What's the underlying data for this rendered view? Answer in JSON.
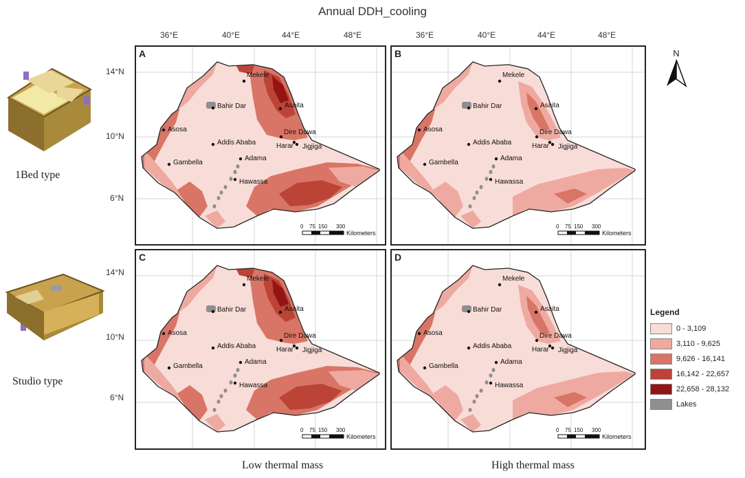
{
  "title": "Annual DDH_cooling",
  "lon_ticks": [
    "36°E",
    "40°E",
    "44°E",
    "48°E"
  ],
  "lat_ticks": [
    "14°N",
    "10°N",
    "6°N"
  ],
  "panels": [
    {
      "letter": "A",
      "intensity": 0
    },
    {
      "letter": "B",
      "intensity": 1
    },
    {
      "letter": "C",
      "intensity": 0
    },
    {
      "letter": "D",
      "intensity": 1
    }
  ],
  "cities": [
    "Mekele",
    "Bahir Dar",
    "Asaita",
    "Asosa",
    "Dire Dawa",
    "Addis Ababa",
    "Harar",
    "Jigjiga",
    "Gambella",
    "Adama",
    "Hawassa"
  ],
  "scale": {
    "ticks": [
      "0",
      "75",
      "150",
      "300"
    ],
    "unit": "Kilometers"
  },
  "north_label": "N",
  "building_labels": {
    "top": "1Bed type",
    "bottom": "Studio type"
  },
  "column_labels": {
    "left": "Low thermal mass",
    "right": "High thermal mass"
  },
  "legend": {
    "title": "Legend",
    "items": [
      {
        "label": "0 - 3,109",
        "color": "#f8dcd8"
      },
      {
        "label": "3,110 - 9,625",
        "color": "#eeaaa0"
      },
      {
        "label": "9,626 - 16,141",
        "color": "#d97566"
      },
      {
        "label": "16,142 - 22,657",
        "color": "#bb4437"
      },
      {
        "label": "22,658 - 28,132",
        "color": "#931412"
      },
      {
        "label": "Lakes",
        "color": "#8f8f8f"
      }
    ]
  }
}
